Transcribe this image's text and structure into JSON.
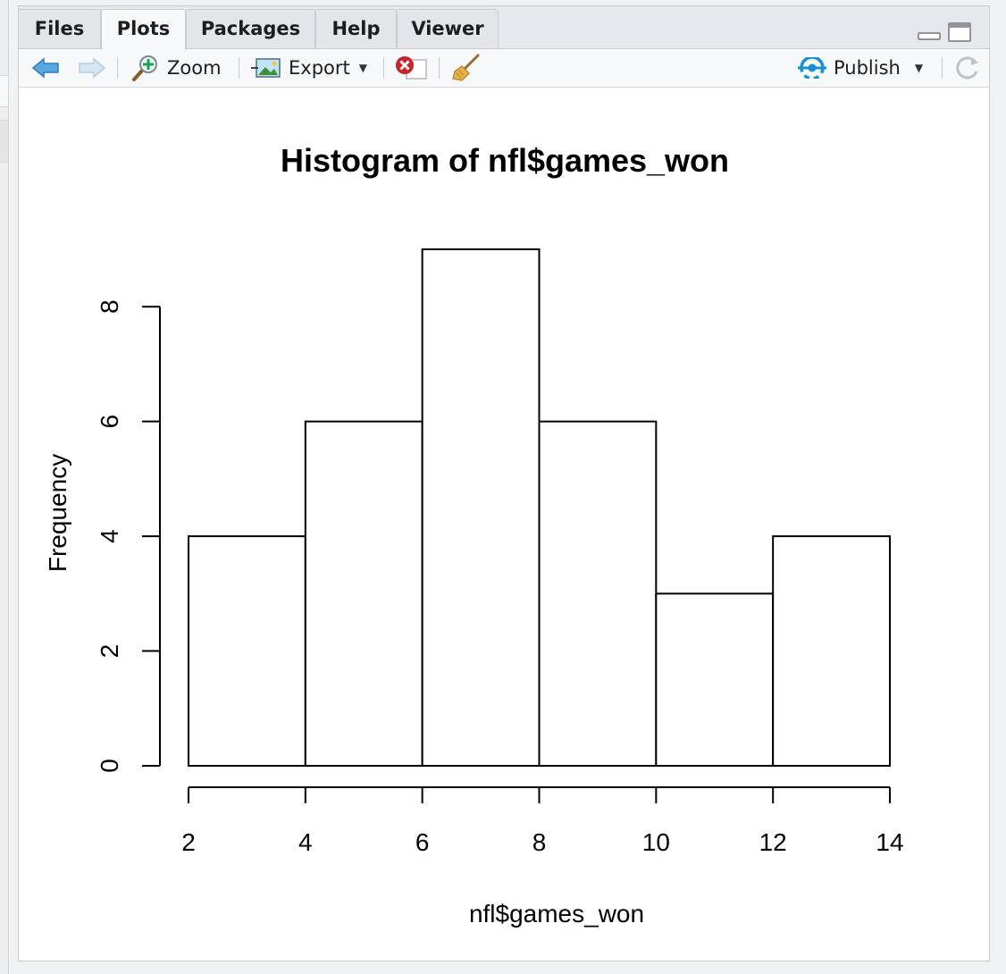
{
  "tabs": [
    {
      "label": "Files"
    },
    {
      "label": "Plots",
      "active": true
    },
    {
      "label": "Packages"
    },
    {
      "label": "Help"
    },
    {
      "label": "Viewer"
    }
  ],
  "toolbar": {
    "back_icon": "arrow-left-icon",
    "forward_icon": "arrow-right-icon",
    "zoom_label": "Zoom",
    "export_label": "Export",
    "remove_icon": "remove-plot-icon",
    "clear_icon": "broom-icon",
    "publish_label": "Publish",
    "refresh_icon": "refresh-icon"
  },
  "colors": {
    "accent_blue": "#1a8fd6",
    "delete_red": "#c8242b",
    "bar_fill": "#ffffff",
    "bar_stroke": "#000000"
  },
  "chart_data": {
    "type": "bar",
    "title": "Histogram of nfl$games_won",
    "xlabel": "nfl$games_won",
    "ylabel": "Frequency",
    "bins": [
      [
        2,
        4
      ],
      [
        4,
        6
      ],
      [
        6,
        8
      ],
      [
        8,
        10
      ],
      [
        10,
        12
      ],
      [
        12,
        14
      ]
    ],
    "values": [
      4,
      6,
      9,
      6,
      3,
      4
    ],
    "xticks": [
      2,
      4,
      6,
      8,
      10,
      12,
      14
    ],
    "yticks": [
      0,
      2,
      4,
      6,
      8
    ],
    "xlim": [
      2,
      14
    ],
    "ylim": [
      0,
      9
    ],
    "grid": false
  }
}
